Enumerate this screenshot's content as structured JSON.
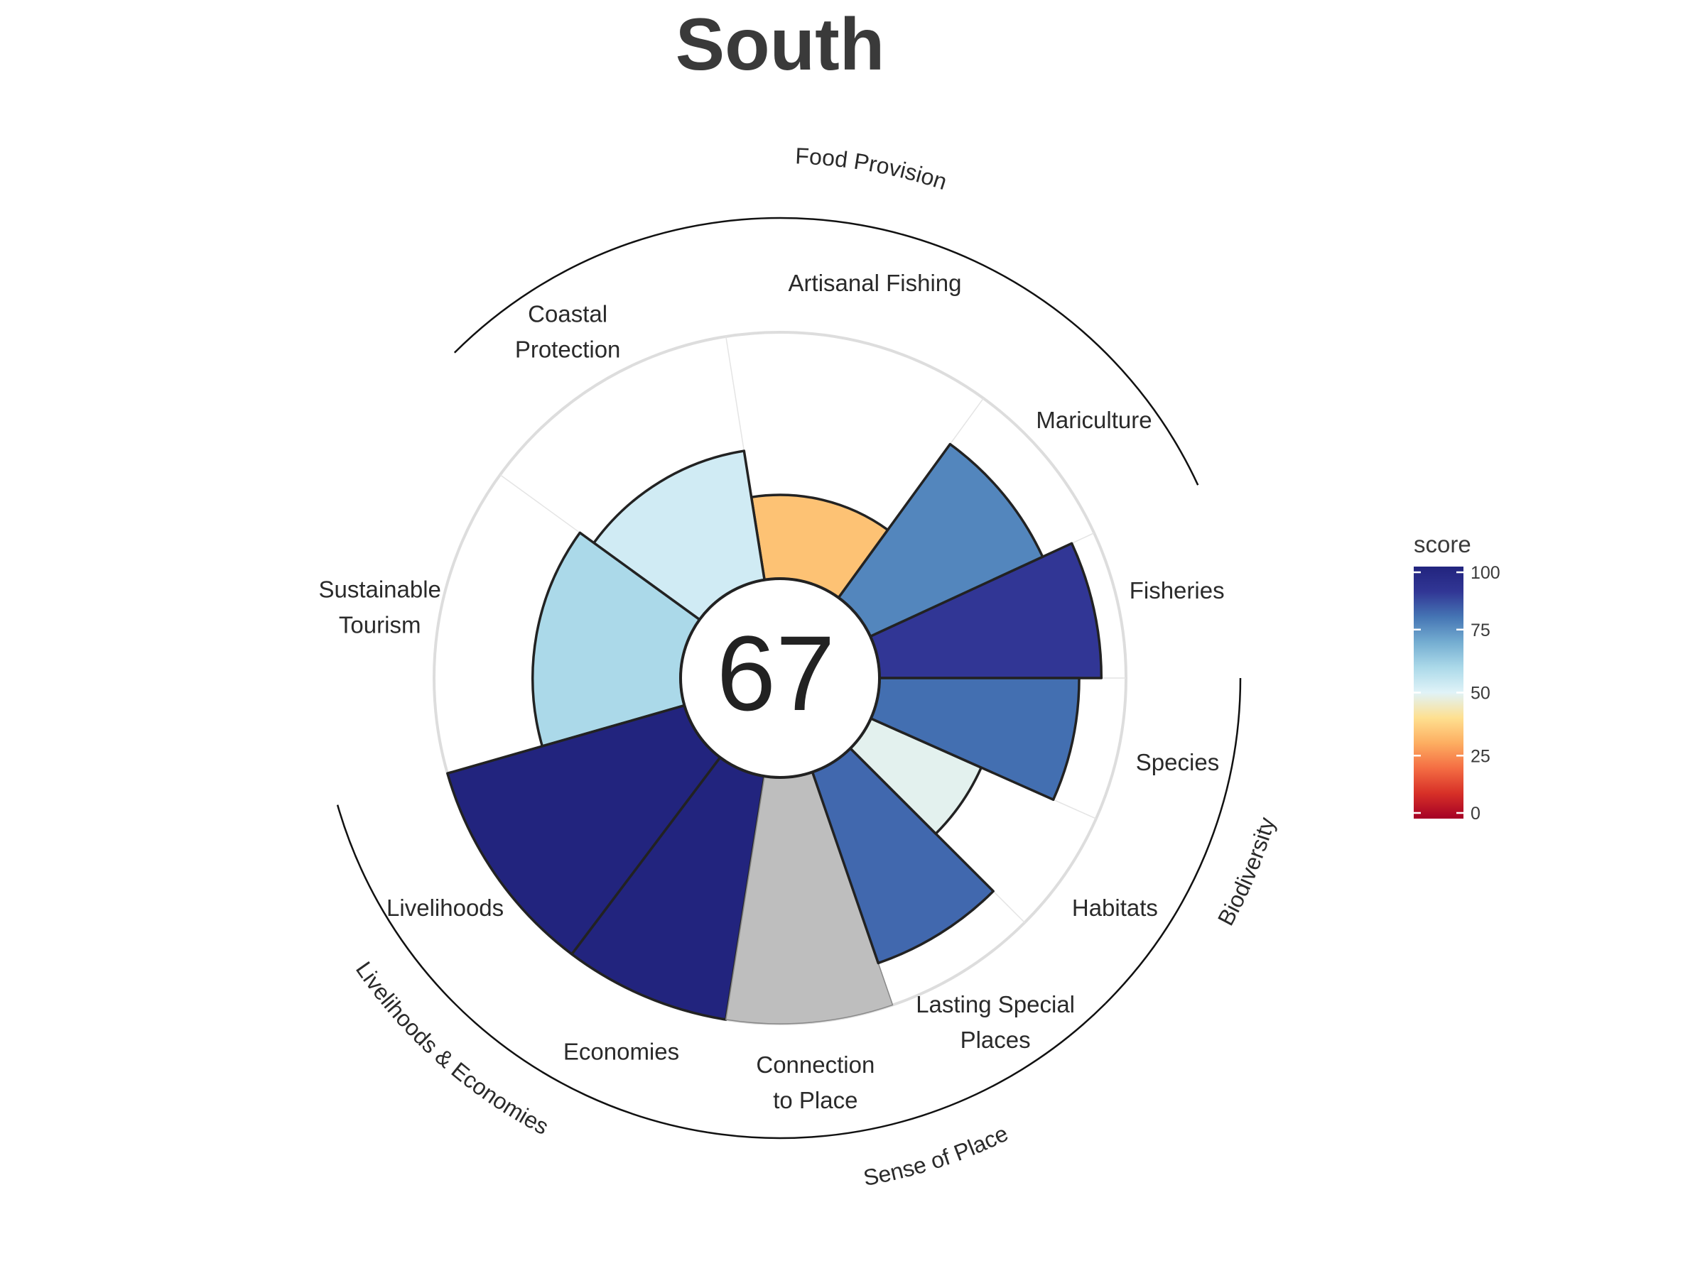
{
  "chart_data": {
    "type": "flower",
    "title": "South",
    "center_score": "67",
    "rmax": 100,
    "legend": {
      "title": "score",
      "ticks": [
        "0",
        "25",
        "50",
        "75",
        "100"
      ],
      "position": "right"
    },
    "colors": {
      "stops": [
        "#a50026",
        "#d73027",
        "#f46d43",
        "#fdae61",
        "#fee090",
        "#e0f3f8",
        "#abd9e9",
        "#74add1",
        "#4575b4",
        "#313695",
        "#22247e"
      ],
      "na": "#bebebe",
      "outline": "#222222",
      "gridline": "#dddddd",
      "title": "#3a3a3a"
    },
    "petals": [
      {
        "label": "Fisheries",
        "lines": [
          "Fisheries"
        ],
        "score": 90,
        "start": 0,
        "end": 24.8
      },
      {
        "label": "Mariculture",
        "lines": [
          "Mariculture"
        ],
        "score": 77,
        "start": 24.8,
        "end": 54
      },
      {
        "label": "Artisanal Fishing",
        "lines": [
          "Artisanal Fishing"
        ],
        "score": 34,
        "start": 54,
        "end": 99
      },
      {
        "label": "Coastal Protection",
        "lines": [
          "Coastal",
          "Protection"
        ],
        "score": 53,
        "start": 99,
        "end": 144
      },
      {
        "label": "Sustainable Tourism",
        "lines": [
          "Sustainable",
          "Tourism"
        ],
        "score": 60,
        "start": 144,
        "end": 196
      },
      {
        "label": "Livelihoods",
        "lines": [
          "Livelihoods"
        ],
        "score": 100,
        "start": 196,
        "end": 233
      },
      {
        "label": "Economies",
        "lines": [
          "Economies"
        ],
        "score": 100,
        "start": 233,
        "end": 261
      },
      {
        "label": "Connection to Place",
        "lines": [
          "Connection",
          "to Place"
        ],
        "score": null,
        "start": 261,
        "end": 289
      },
      {
        "label": "Lasting Special Places",
        "lines": [
          "Lasting Special",
          "Places"
        ],
        "score": 82,
        "start": 289,
        "end": 315
      },
      {
        "label": "Habitats",
        "lines": [
          "Habitats"
        ],
        "score": 49,
        "start": 315,
        "end": 336
      },
      {
        "label": "Species",
        "lines": [
          "Species"
        ],
        "score": 81,
        "start": 336,
        "end": 360
      }
    ],
    "groups": [
      {
        "label": "Food Provision",
        "start": 24.8,
        "end": 135
      },
      {
        "label": "Livelihoods & Economies",
        "start": 196,
        "end": 261
      },
      {
        "label": "Sense of Place",
        "start": 261,
        "end": 315
      },
      {
        "label": "Biodiversity",
        "start": 315,
        "end": 360
      }
    ]
  }
}
